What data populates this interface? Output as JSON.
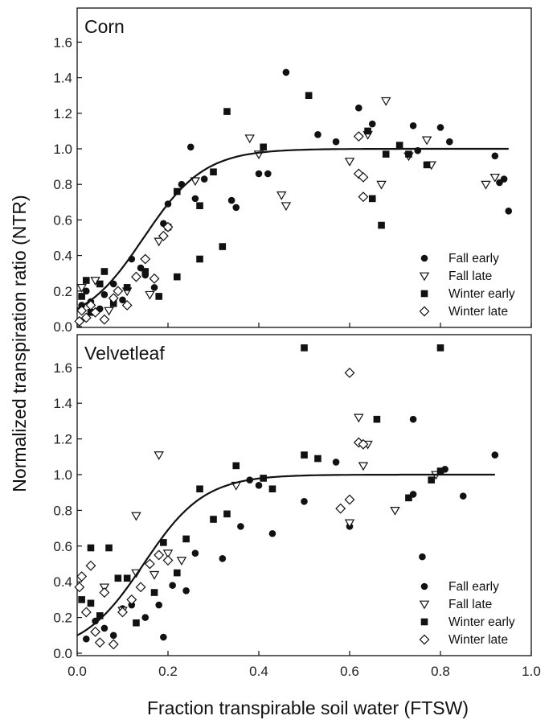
{
  "chart_data": {
    "type": "scatter",
    "xlabel": "Fraction transpirable soil water (FTSW)",
    "ylabel": "Normalized transpiration ratio (NTR)",
    "xlim": [
      0,
      1.0
    ],
    "xticks": [
      "0.0",
      "0.2",
      "0.4",
      "0.6",
      "0.8",
      "1.0"
    ],
    "legend_position": "bottom-right",
    "panels": [
      {
        "title": "Corn",
        "ylim": [
          0,
          1.75
        ],
        "yticks": [
          "0.0",
          "0.2",
          "0.4",
          "0.6",
          "0.8",
          "1.0",
          "1.2",
          "1.4",
          "1.6"
        ],
        "fit_curve": {
          "plateau": 1.0,
          "x_end": 0.95
        },
        "series": [
          {
            "name": "Fall early",
            "marker": "filled-circle",
            "points": [
              [
                0.01,
                0.12
              ],
              [
                0.02,
                0.2
              ],
              [
                0.03,
                0.14
              ],
              [
                0.05,
                0.1
              ],
              [
                0.06,
                0.18
              ],
              [
                0.08,
                0.24
              ],
              [
                0.1,
                0.15
              ],
              [
                0.12,
                0.38
              ],
              [
                0.14,
                0.33
              ],
              [
                0.15,
                0.29
              ],
              [
                0.17,
                0.22
              ],
              [
                0.19,
                0.58
              ],
              [
                0.2,
                0.69
              ],
              [
                0.23,
                0.8
              ],
              [
                0.25,
                1.01
              ],
              [
                0.26,
                0.72
              ],
              [
                0.28,
                0.83
              ],
              [
                0.34,
                0.71
              ],
              [
                0.35,
                0.67
              ],
              [
                0.4,
                0.86
              ],
              [
                0.42,
                0.86
              ],
              [
                0.46,
                1.43
              ],
              [
                0.53,
                1.08
              ],
              [
                0.57,
                1.04
              ],
              [
                0.62,
                1.23
              ],
              [
                0.65,
                1.14
              ],
              [
                0.74,
                1.13
              ],
              [
                0.75,
                0.99
              ],
              [
                0.8,
                1.12
              ],
              [
                0.82,
                1.04
              ],
              [
                0.92,
                0.96
              ],
              [
                0.93,
                0.81
              ],
              [
                0.94,
                0.83
              ],
              [
                0.95,
                0.65
              ]
            ]
          },
          {
            "name": "Fall late",
            "marker": "open-triangle-down",
            "points": [
              [
                0.01,
                0.22
              ],
              [
                0.04,
                0.26
              ],
              [
                0.07,
                0.09
              ],
              [
                0.11,
                0.2
              ],
              [
                0.16,
                0.18
              ],
              [
                0.18,
                0.48
              ],
              [
                0.26,
                0.82
              ],
              [
                0.38,
                1.06
              ],
              [
                0.4,
                0.97
              ],
              [
                0.45,
                0.74
              ],
              [
                0.46,
                0.68
              ],
              [
                0.6,
                0.93
              ],
              [
                0.64,
                1.08
              ],
              [
                0.67,
                0.8
              ],
              [
                0.68,
                1.27
              ],
              [
                0.73,
                0.96
              ],
              [
                0.77,
                1.05
              ],
              [
                0.78,
                0.91
              ],
              [
                0.9,
                0.8
              ],
              [
                0.92,
                0.84
              ]
            ]
          },
          {
            "name": "Winter early",
            "marker": "filled-square",
            "points": [
              [
                0.01,
                0.17
              ],
              [
                0.02,
                0.26
              ],
              [
                0.03,
                0.08
              ],
              [
                0.05,
                0.24
              ],
              [
                0.06,
                0.31
              ],
              [
                0.08,
                0.13
              ],
              [
                0.11,
                0.22
              ],
              [
                0.15,
                0.31
              ],
              [
                0.18,
                0.17
              ],
              [
                0.2,
                0.56
              ],
              [
                0.22,
                0.28
              ],
              [
                0.22,
                0.76
              ],
              [
                0.27,
                0.38
              ],
              [
                0.27,
                0.68
              ],
              [
                0.3,
                0.87
              ],
              [
                0.32,
                0.45
              ],
              [
                0.33,
                1.21
              ],
              [
                0.41,
                1.01
              ],
              [
                0.51,
                1.3
              ],
              [
                0.64,
                1.1
              ],
              [
                0.65,
                0.72
              ],
              [
                0.67,
                0.57
              ],
              [
                0.68,
                0.97
              ],
              [
                0.71,
                1.02
              ],
              [
                0.73,
                0.97
              ],
              [
                0.77,
                0.91
              ]
            ]
          },
          {
            "name": "Winter late",
            "marker": "open-diamond",
            "points": [
              [
                0.005,
                0.03
              ],
              [
                0.01,
                0.09
              ],
              [
                0.02,
                0.05
              ],
              [
                0.03,
                0.12
              ],
              [
                0.04,
                0.08
              ],
              [
                0.06,
                0.04
              ],
              [
                0.08,
                0.16
              ],
              [
                0.09,
                0.2
              ],
              [
                0.11,
                0.12
              ],
              [
                0.13,
                0.28
              ],
              [
                0.15,
                0.38
              ],
              [
                0.17,
                0.27
              ],
              [
                0.19,
                0.51
              ],
              [
                0.2,
                0.56
              ],
              [
                0.62,
                1.07
              ],
              [
                0.62,
                0.86
              ],
              [
                0.63,
                0.84
              ],
              [
                0.63,
                0.73
              ]
            ]
          }
        ]
      },
      {
        "title": "Velvetleaf",
        "ylim": [
          0,
          1.75
        ],
        "yticks": [
          "0.0",
          "0.2",
          "0.4",
          "0.6",
          "0.8",
          "1.0",
          "1.2",
          "1.4",
          "1.6"
        ],
        "fit_curve": {
          "plateau": 1.0,
          "x_end": 0.92
        },
        "series": [
          {
            "name": "Fall early",
            "marker": "filled-circle",
            "points": [
              [
                0.02,
                0.08
              ],
              [
                0.04,
                0.18
              ],
              [
                0.06,
                0.14
              ],
              [
                0.08,
                0.1
              ],
              [
                0.1,
                0.25
              ],
              [
                0.12,
                0.27
              ],
              [
                0.15,
                0.2
              ],
              [
                0.18,
                0.27
              ],
              [
                0.19,
                0.09
              ],
              [
                0.21,
                0.38
              ],
              [
                0.24,
                0.35
              ],
              [
                0.26,
                0.56
              ],
              [
                0.32,
                0.53
              ],
              [
                0.36,
                0.71
              ],
              [
                0.38,
                0.97
              ],
              [
                0.4,
                0.94
              ],
              [
                0.43,
                0.67
              ],
              [
                0.5,
                0.85
              ],
              [
                0.57,
                1.07
              ],
              [
                0.6,
                0.71
              ],
              [
                0.74,
                1.31
              ],
              [
                0.74,
                0.89
              ],
              [
                0.76,
                0.54
              ],
              [
                0.81,
                1.03
              ],
              [
                0.85,
                0.88
              ],
              [
                0.92,
                1.11
              ]
            ]
          },
          {
            "name": "Fall late",
            "marker": "open-triangle-down",
            "points": [
              [
                0.06,
                0.37
              ],
              [
                0.1,
                0.24
              ],
              [
                0.13,
                0.77
              ],
              [
                0.13,
                0.45
              ],
              [
                0.17,
                0.44
              ],
              [
                0.18,
                1.11
              ],
              [
                0.2,
                0.56
              ],
              [
                0.23,
                0.52
              ],
              [
                0.35,
                0.94
              ],
              [
                0.6,
                0.73
              ],
              [
                0.62,
                1.32
              ],
              [
                0.63,
                1.05
              ],
              [
                0.64,
                1.17
              ],
              [
                0.7,
                0.8
              ],
              [
                0.79,
                1.0
              ]
            ]
          },
          {
            "name": "Winter early",
            "marker": "filled-square",
            "points": [
              [
                0.01,
                0.3
              ],
              [
                0.03,
                0.28
              ],
              [
                0.03,
                0.59
              ],
              [
                0.05,
                0.21
              ],
              [
                0.07,
                0.59
              ],
              [
                0.09,
                0.42
              ],
              [
                0.11,
                0.42
              ],
              [
                0.13,
                0.17
              ],
              [
                0.17,
                0.34
              ],
              [
                0.19,
                0.62
              ],
              [
                0.22,
                0.45
              ],
              [
                0.24,
                0.64
              ],
              [
                0.27,
                0.92
              ],
              [
                0.3,
                0.75
              ],
              [
                0.33,
                0.78
              ],
              [
                0.35,
                1.05
              ],
              [
                0.41,
                0.98
              ],
              [
                0.43,
                0.92
              ],
              [
                0.5,
                1.71
              ],
              [
                0.5,
                1.11
              ],
              [
                0.53,
                1.09
              ],
              [
                0.66,
                1.31
              ],
              [
                0.73,
                0.87
              ],
              [
                0.78,
                0.97
              ],
              [
                0.8,
                1.71
              ],
              [
                0.8,
                1.02
              ]
            ]
          },
          {
            "name": "Winter late",
            "marker": "open-diamond",
            "points": [
              [
                0.005,
                0.37
              ],
              [
                0.01,
                0.43
              ],
              [
                0.02,
                0.23
              ],
              [
                0.03,
                0.49
              ],
              [
                0.04,
                0.12
              ],
              [
                0.05,
                0.06
              ],
              [
                0.06,
                0.34
              ],
              [
                0.08,
                0.05
              ],
              [
                0.1,
                0.23
              ],
              [
                0.12,
                0.3
              ],
              [
                0.14,
                0.37
              ],
              [
                0.16,
                0.5
              ],
              [
                0.18,
                0.55
              ],
              [
                0.2,
                0.52
              ],
              [
                0.58,
                0.81
              ],
              [
                0.6,
                0.86
              ],
              [
                0.6,
                1.57
              ],
              [
                0.62,
                1.18
              ],
              [
                0.63,
                1.17
              ]
            ]
          }
        ]
      }
    ]
  }
}
